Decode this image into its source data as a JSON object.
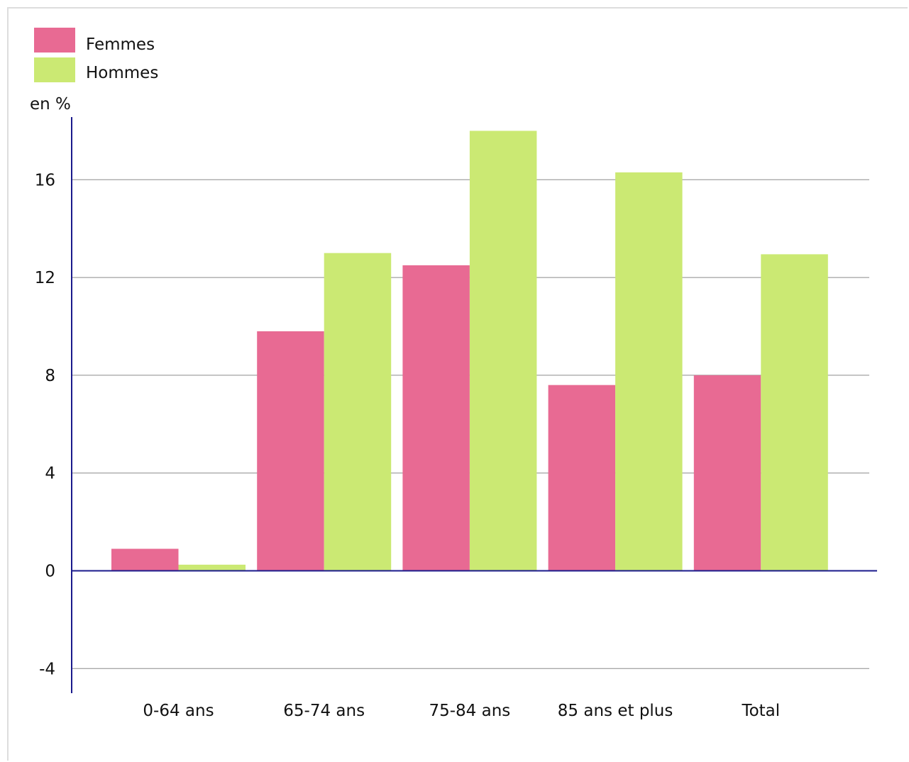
{
  "chart_data": {
    "type": "bar",
    "ylabel": "en %",
    "categories": [
      "0-64 ans",
      "65-74 ans",
      "75-84 ans",
      "85 ans et plus",
      "Total"
    ],
    "series": [
      {
        "name": "Femmes",
        "color": "#e86a93",
        "values": [
          0.9,
          9.8,
          12.5,
          7.6,
          8.0
        ]
      },
      {
        "name": "Hommes",
        "color": "#cbe973",
        "values": [
          0.25,
          13.0,
          18.0,
          16.3,
          12.95
        ]
      }
    ],
    "ylim": [
      -5,
      19
    ],
    "yticks": [
      -4,
      0,
      4,
      8,
      12,
      16
    ],
    "grid": true,
    "legend_position": "top-left"
  }
}
